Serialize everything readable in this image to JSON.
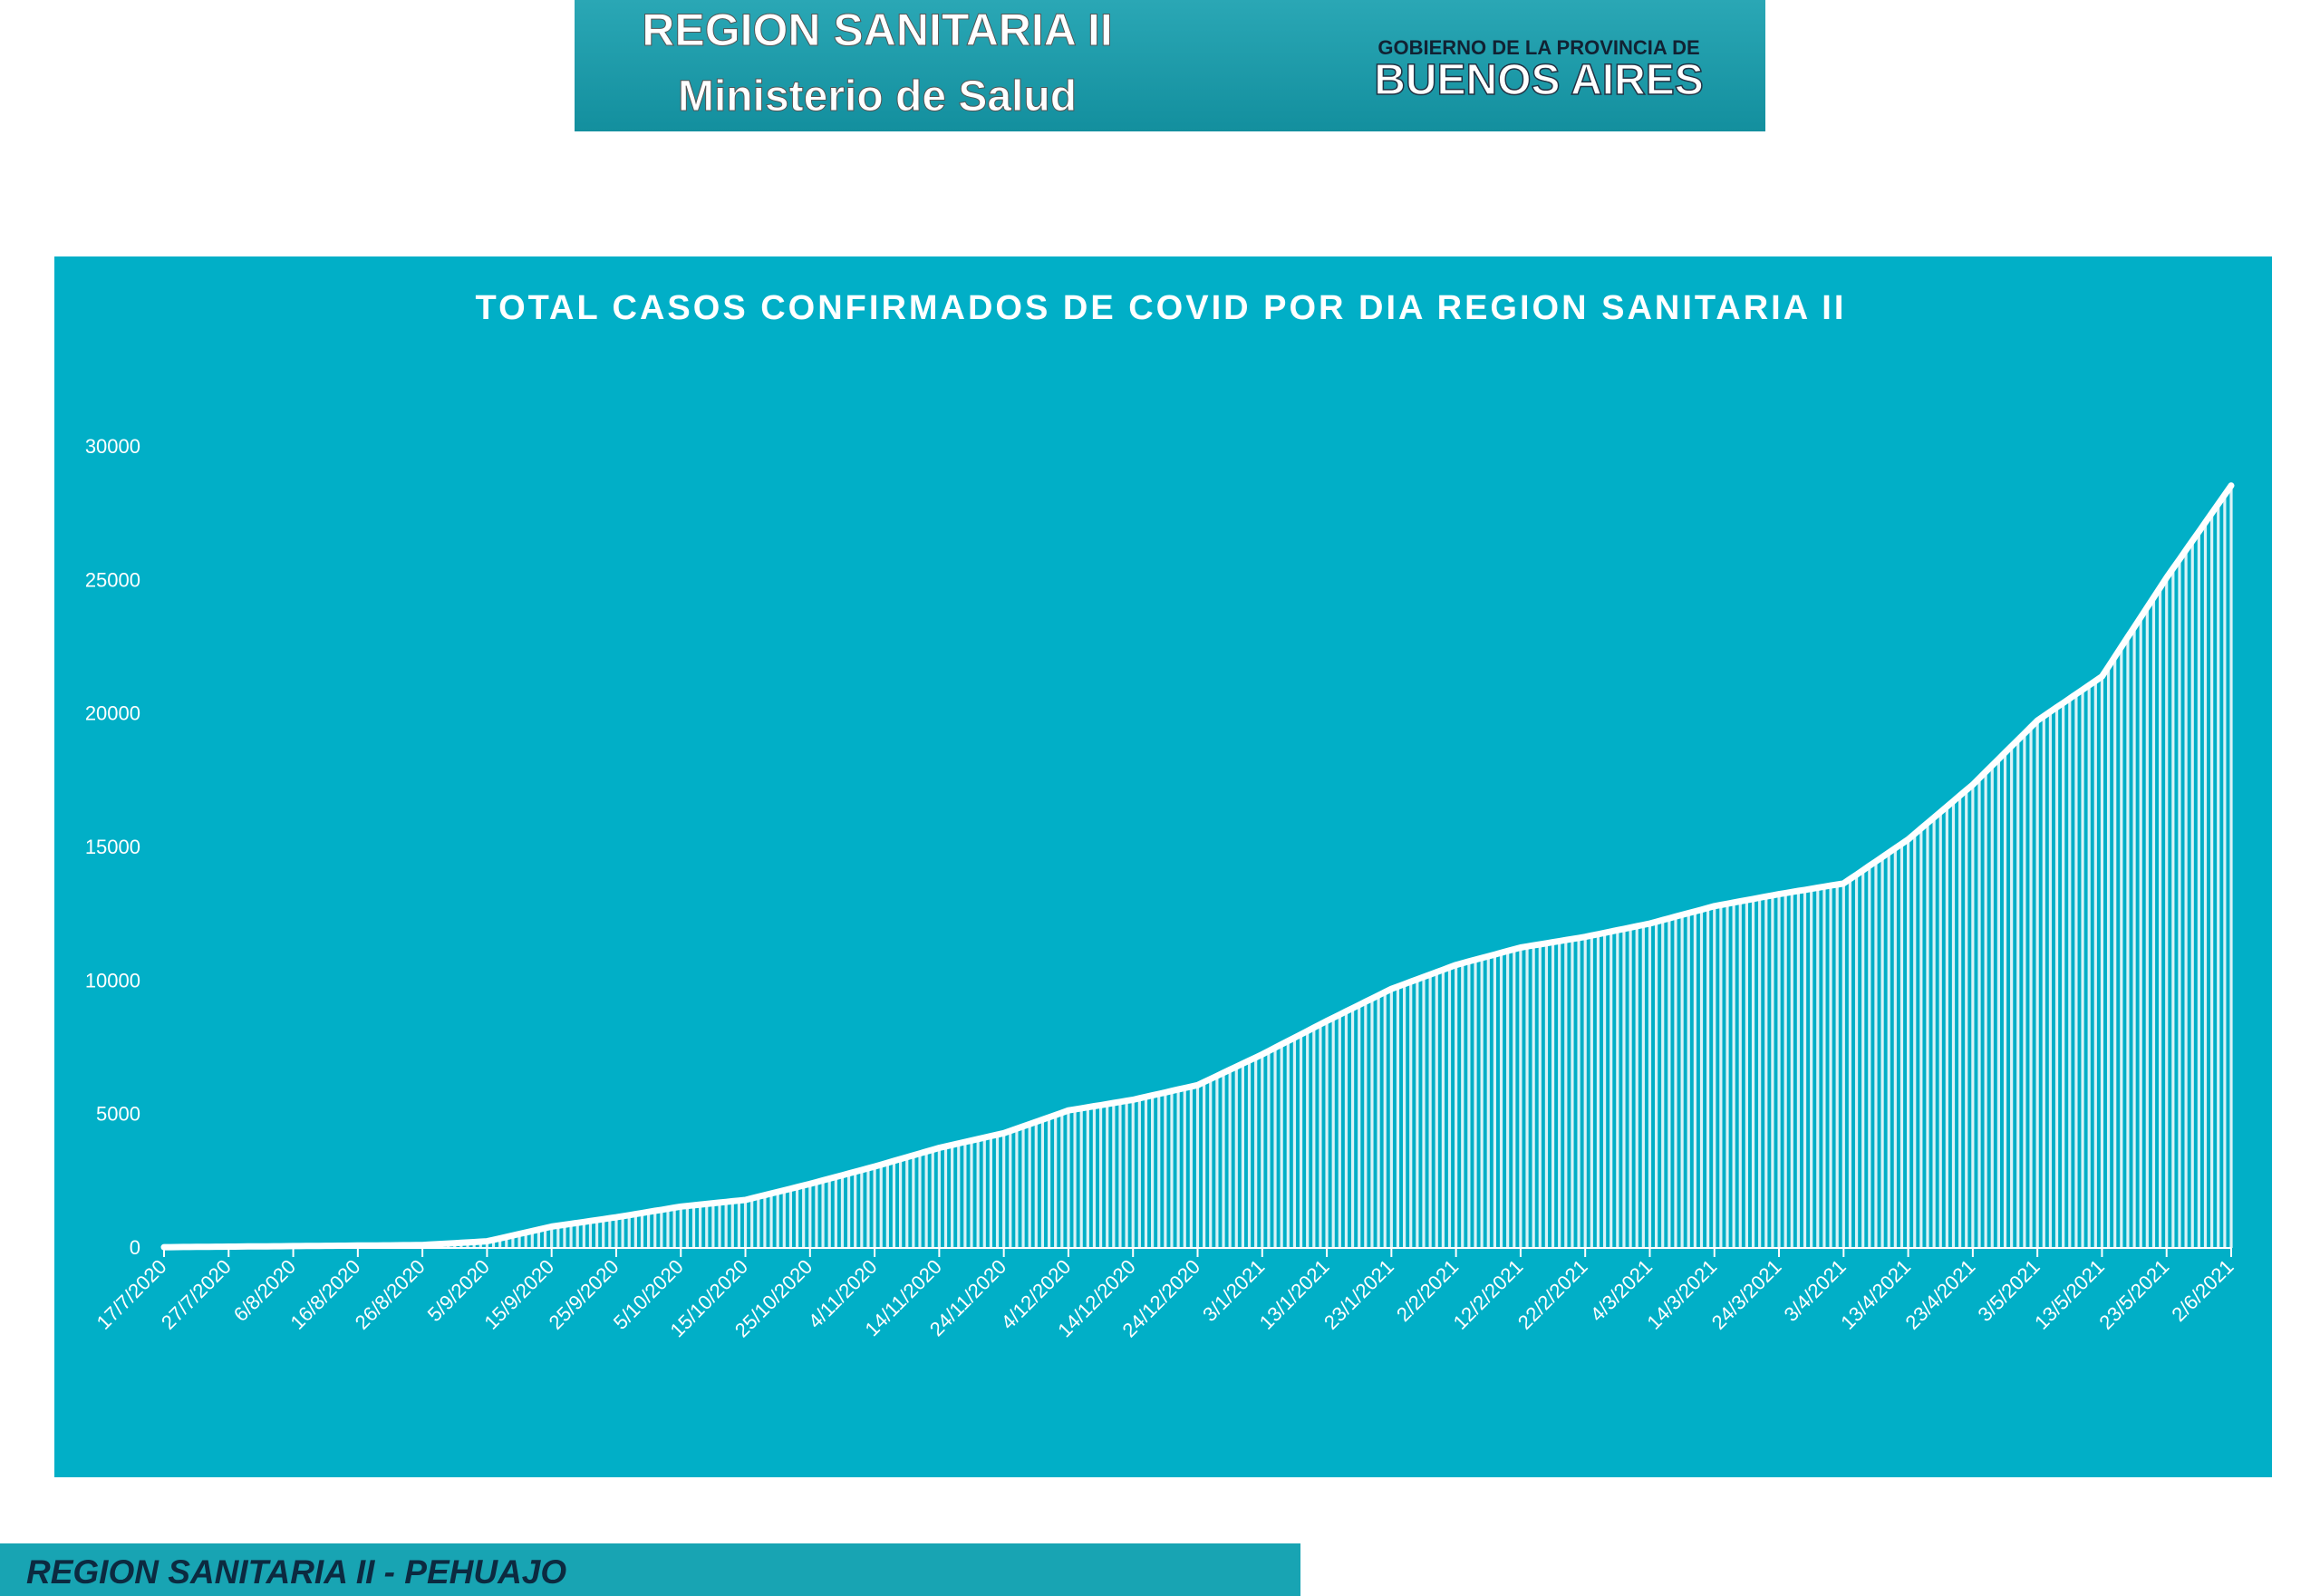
{
  "header": {
    "title": "REGION SANITARIA II",
    "subtitle": "Ministerio de Salud",
    "government": "GOBIERNO DE LA PROVINCIA DE",
    "province": "BUENOS AIRES"
  },
  "footer": {
    "text": "REGION SANITARIA II - PEHUAJO"
  },
  "chart_data": {
    "type": "bar",
    "title": "TOTAL CASOS CONFIRMADOS DE COVID POR DIA REGION SANITARIA II",
    "color": "#ffffff",
    "grid": false,
    "ylim": [
      0,
      30000
    ],
    "yticks": [
      0,
      5000,
      10000,
      15000,
      20000,
      25000,
      30000
    ],
    "categories": [
      "17/7/2020",
      null,
      null,
      null,
      null,
      null,
      null,
      null,
      null,
      null,
      "27/7/2020",
      null,
      null,
      null,
      null,
      null,
      null,
      null,
      null,
      null,
      "6/8/2020",
      null,
      null,
      null,
      null,
      null,
      null,
      null,
      null,
      null,
      "16/8/2020",
      null,
      null,
      null,
      null,
      null,
      null,
      null,
      null,
      null,
      "26/8/2020",
      null,
      null,
      null,
      null,
      null,
      null,
      null,
      null,
      null,
      "5/9/2020",
      null,
      null,
      null,
      null,
      null,
      null,
      null,
      null,
      null,
      "15/9/2020",
      null,
      null,
      null,
      null,
      null,
      null,
      null,
      null,
      null,
      "25/9/2020",
      null,
      null,
      null,
      null,
      null,
      null,
      null,
      null,
      null,
      "5/10/2020",
      null,
      null,
      null,
      null,
      null,
      null,
      null,
      null,
      null,
      "15/10/2020",
      null,
      null,
      null,
      null,
      null,
      null,
      null,
      null,
      null,
      "25/10/2020",
      null,
      null,
      null,
      null,
      null,
      null,
      null,
      null,
      null,
      "4/11/2020",
      null,
      null,
      null,
      null,
      null,
      null,
      null,
      null,
      null,
      "14/11/2020",
      null,
      null,
      null,
      null,
      null,
      null,
      null,
      null,
      null,
      "24/11/2020",
      null,
      null,
      null,
      null,
      null,
      null,
      null,
      null,
      null,
      "4/12/2020",
      null,
      null,
      null,
      null,
      null,
      null,
      null,
      null,
      null,
      "14/12/2020",
      null,
      null,
      null,
      null,
      null,
      null,
      null,
      null,
      null,
      "24/12/2020",
      null,
      null,
      null,
      null,
      null,
      null,
      null,
      null,
      null,
      "3/1/2021",
      null,
      null,
      null,
      null,
      null,
      null,
      null,
      null,
      null,
      "13/1/2021",
      null,
      null,
      null,
      null,
      null,
      null,
      null,
      null,
      null,
      "23/1/2021",
      null,
      null,
      null,
      null,
      null,
      null,
      null,
      null,
      null,
      "2/2/2021",
      null,
      null,
      null,
      null,
      null,
      null,
      null,
      null,
      null,
      "12/2/2021",
      null,
      null,
      null,
      null,
      null,
      null,
      null,
      null,
      null,
      "22/2/2021",
      null,
      null,
      null,
      null,
      null,
      null,
      null,
      null,
      null,
      "4/3/2021",
      null,
      null,
      null,
      null,
      null,
      null,
      null,
      null,
      null,
      "14/3/2021",
      null,
      null,
      null,
      null,
      null,
      null,
      null,
      null,
      null,
      "24/3/2021",
      null,
      null,
      null,
      null,
      null,
      null,
      null,
      null,
      null,
      "3/4/2021",
      null,
      null,
      null,
      null,
      null,
      null,
      null,
      null,
      null,
      "13/4/2021",
      null,
      null,
      null,
      null,
      null,
      null,
      null,
      null,
      null,
      "23/4/2021",
      null,
      null,
      null,
      null,
      null,
      null,
      null,
      null,
      null,
      "3/5/2021",
      null,
      null,
      null,
      null,
      null,
      null,
      null,
      null,
      null,
      "13/5/2021",
      null,
      null,
      null,
      null,
      null,
      null,
      null,
      null,
      null,
      "23/5/2021",
      null,
      null,
      null,
      null,
      null,
      null,
      null,
      null,
      null,
      "2/6/2021"
    ],
    "values": [
      30,
      32,
      34,
      36,
      38,
      40,
      42,
      44,
      46,
      48,
      50,
      52,
      54,
      56,
      58,
      60,
      62,
      64,
      66,
      68,
      70,
      72,
      74,
      76,
      78,
      80,
      82,
      84,
      86,
      88,
      90,
      92,
      94,
      96,
      98,
      100,
      102,
      104,
      106,
      108,
      110,
      124,
      138,
      152,
      166,
      180,
      194,
      208,
      222,
      236,
      250,
      305,
      360,
      415,
      470,
      525,
      580,
      635,
      690,
      745,
      800,
      835,
      870,
      905,
      940,
      975,
      1010,
      1045,
      1080,
      1115,
      1150,
      1190,
      1230,
      1270,
      1310,
      1350,
      1390,
      1430,
      1470,
      1510,
      1550,
      1575,
      1600,
      1625,
      1650,
      1675,
      1700,
      1725,
      1750,
      1775,
      1800,
      1860,
      1920,
      1980,
      2040,
      2100,
      2160,
      2220,
      2280,
      2340,
      2400,
      2465,
      2530,
      2595,
      2660,
      2725,
      2790,
      2855,
      2920,
      2985,
      3050,
      3120,
      3190,
      3260,
      3330,
      3400,
      3470,
      3540,
      3610,
      3680,
      3750,
      3805,
      3860,
      3915,
      3970,
      4025,
      4080,
      4135,
      4190,
      4245,
      4300,
      4385,
      4470,
      4555,
      4640,
      4725,
      4810,
      4895,
      4980,
      5065,
      5150,
      5190,
      5230,
      5270,
      5310,
      5350,
      5390,
      5430,
      5470,
      5510,
      5550,
      5605,
      5660,
      5715,
      5770,
      5825,
      5880,
      5935,
      5990,
      6045,
      6100,
      6215,
      6330,
      6445,
      6560,
      6675,
      6790,
      6905,
      7020,
      7135,
      7250,
      7375,
      7500,
      7625,
      7750,
      7875,
      8000,
      8125,
      8250,
      8375,
      8500,
      8620,
      8740,
      8860,
      8980,
      9100,
      9220,
      9340,
      9460,
      9580,
      9700,
      9790,
      9880,
      9970,
      10060,
      10150,
      10240,
      10330,
      10420,
      10510,
      10600,
      10665,
      10730,
      10795,
      10860,
      10925,
      10990,
      11055,
      11120,
      11185,
      11250,
      11290,
      11330,
      11370,
      11410,
      11450,
      11490,
      11530,
      11570,
      11610,
      11650,
      11700,
      11750,
      11800,
      11850,
      11900,
      11950,
      12000,
      12050,
      12100,
      12150,
      12215,
      12280,
      12345,
      12410,
      12475,
      12540,
      12605,
      12670,
      12735,
      12800,
      12845,
      12890,
      12935,
      12980,
      13025,
      13070,
      13115,
      13160,
      13205,
      13250,
      13290,
      13330,
      13370,
      13410,
      13450,
      13490,
      13530,
      13570,
      13610,
      13650,
      13815,
      13980,
      14145,
      14310,
      14475,
      14640,
      14805,
      14970,
      15135,
      15300,
      15505,
      15710,
      15915,
      16120,
      16325,
      16530,
      16735,
      16940,
      17145,
      17350,
      17590,
      17830,
      18070,
      18310,
      18550,
      18790,
      19030,
      19270,
      19510,
      19750,
      19915,
      20080,
      20245,
      20410,
      20575,
      20740,
      20905,
      21070,
      21235,
      21400,
      21770,
      22140,
      22510,
      22880,
      23250,
      23620,
      23990,
      24360,
      24730,
      25100,
      25445,
      25790,
      26135,
      26480,
      26825,
      27170,
      27515,
      27860,
      28205,
      28550
    ]
  }
}
